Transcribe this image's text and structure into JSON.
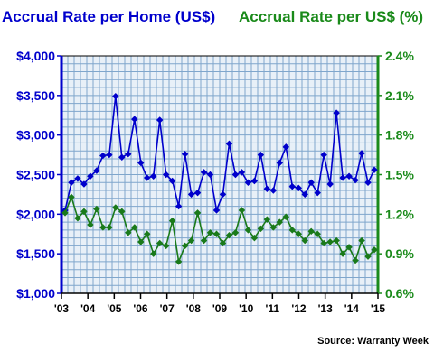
{
  "chart_data": {
    "type": "line",
    "title_left": "Accrual Rate per Home (US$)",
    "title_right": "Accrual Rate per US$ (%)",
    "source": "Source: Warranty Week",
    "colors": {
      "left_axis": "#0000cc",
      "right_axis": "#1a8a1a",
      "series_home": "#0000cc",
      "series_pct": "#1a7a1a",
      "plot_bg": "#e8f0f8",
      "grid": "#7fa6cc",
      "axis": "#000000"
    },
    "x_ticks": [
      "'03",
      "'04",
      "'05",
      "'06",
      "'07",
      "'08",
      "'09",
      "'10",
      "'11",
      "'12",
      "'13",
      "'14",
      "'15"
    ],
    "y_left": {
      "range": [
        1000,
        4000
      ],
      "ticks": [
        1000,
        1500,
        2000,
        2500,
        3000,
        3500,
        4000
      ],
      "tick_labels": [
        "$1,000",
        "$1,500",
        "$2,000",
        "$2,500",
        "$3,000",
        "$3,500",
        "$4,000"
      ]
    },
    "y_right": {
      "range": [
        0.6,
        2.4
      ],
      "ticks": [
        0.6,
        0.9,
        1.2,
        1.5,
        1.8,
        2.1,
        2.4
      ],
      "tick_labels": [
        "0.6%",
        "0.9%",
        "1.2%",
        "1.5%",
        "1.8%",
        "2.1%",
        "2.4%"
      ]
    },
    "grid": true,
    "series": [
      {
        "name": "Accrual Rate per Home (US$)",
        "axis": "left",
        "values": [
          2050,
          2400,
          2450,
          2380,
          2480,
          2550,
          2740,
          2750,
          3490,
          2720,
          2760,
          3200,
          2650,
          2460,
          2480,
          3190,
          2500,
          2420,
          2100,
          2760,
          2250,
          2270,
          2530,
          2500,
          2050,
          2250,
          2890,
          2500,
          2530,
          2400,
          2420,
          2750,
          2320,
          2300,
          2650,
          2850,
          2350,
          2330,
          2250,
          2400,
          2270,
          2750,
          2380,
          3280,
          2460,
          2480,
          2430,
          2770,
          2400,
          2560
        ]
      },
      {
        "name": "Accrual Rate per US$ (%)",
        "axis": "right",
        "values": [
          1.21,
          1.33,
          1.17,
          1.22,
          1.12,
          1.24,
          1.1,
          1.1,
          1.25,
          1.22,
          1.06,
          1.1,
          0.99,
          1.05,
          0.9,
          0.98,
          0.96,
          1.15,
          0.84,
          0.96,
          1.0,
          1.21,
          1.0,
          1.06,
          1.05,
          0.98,
          1.04,
          1.06,
          1.23,
          1.08,
          1.02,
          1.09,
          1.16,
          1.1,
          1.14,
          1.18,
          1.08,
          1.05,
          1.0,
          1.07,
          1.05,
          0.98,
          0.99,
          1.0,
          0.9,
          0.95,
          0.85,
          1.0,
          0.88,
          0.93
        ]
      }
    ]
  }
}
